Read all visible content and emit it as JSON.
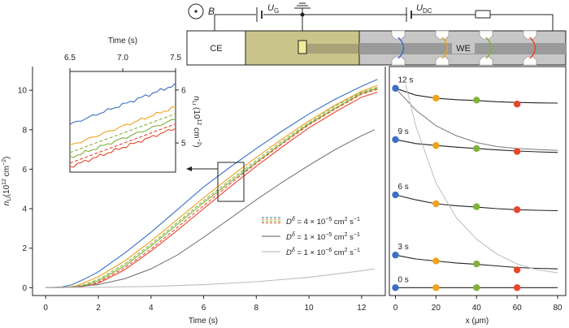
{
  "device": {
    "magnetic_field_label": "B",
    "gate_voltage_label": "U",
    "gate_voltage_sub": "G",
    "dc_voltage_label": "U",
    "dc_voltage_sub": "DC",
    "counter_electrode_label": "CE",
    "working_electrode_label": "WE"
  },
  "colors": {
    "blue": "#3b6fc4",
    "orange": "#f0a21a",
    "green": "#7fb23a",
    "red": "#e8452c",
    "gray_dark": "#7a7a7a",
    "gray_light": "#bdbdbd",
    "black": "#222222",
    "gate_fill": "#c9c48a"
  },
  "chart_data": [
    {
      "id": "main",
      "type": "line",
      "xlabel": "Time (s)",
      "ylabel": "n",
      "ylabel_sub": "Li",
      "ylabel_unit": "(10",
      "ylabel_exp": "12",
      "ylabel_unit2": " cm",
      "ylabel_exp2": "−2",
      "ylabel_close": ")",
      "xlim": [
        -0.5,
        12.9
      ],
      "ylim": [
        -0.4,
        11.2
      ],
      "xticks": [
        "0",
        "2",
        "4",
        "6",
        "8",
        "10",
        "12"
      ],
      "yticks": [
        "0",
        "2",
        "4",
        "6",
        "8",
        "10"
      ],
      "series": [
        {
          "color": "blue",
          "dashed": false,
          "x": [
            0.0,
            0.6,
            1.0,
            1.5,
            2.0,
            3.0,
            4.0,
            5.0,
            6.0,
            7.0,
            8.0,
            9.0,
            10.0,
            11.0,
            12.0,
            12.6
          ],
          "y": [
            0.0,
            0.03,
            0.15,
            0.45,
            0.8,
            1.75,
            2.8,
            3.95,
            5.1,
            6.1,
            7.05,
            7.95,
            8.8,
            9.55,
            10.2,
            10.55
          ]
        },
        {
          "color": "orange",
          "dashed": false,
          "x": [
            0.0,
            0.8,
            1.2,
            2.0,
            3.0,
            4.0,
            5.0,
            6.0,
            7.0,
            8.0,
            9.0,
            10.0,
            11.0,
            12.0,
            12.6
          ],
          "y": [
            0.0,
            0.02,
            0.1,
            0.55,
            1.35,
            2.35,
            3.45,
            4.55,
            5.6,
            6.6,
            7.55,
            8.45,
            9.25,
            9.95,
            10.25
          ]
        },
        {
          "color": "green",
          "dashed": true,
          "x": [
            0.0,
            0.9,
            1.4,
            2.0,
            3.0,
            4.0,
            5.0,
            6.0,
            7.0,
            8.0,
            9.0,
            10.0,
            11.0,
            12.0,
            12.6
          ],
          "y": [
            0.0,
            0.02,
            0.12,
            0.42,
            1.2,
            2.2,
            3.3,
            4.4,
            5.45,
            6.45,
            7.45,
            8.35,
            9.2,
            9.9,
            10.15
          ]
        },
        {
          "color": "green",
          "dashed": false,
          "x": [
            0.0,
            1.0,
            1.5,
            2.0,
            3.0,
            4.0,
            5.0,
            6.0,
            7.0,
            8.0,
            9.0,
            10.0,
            11.0,
            12.0,
            12.6
          ],
          "y": [
            0.0,
            0.02,
            0.12,
            0.35,
            1.1,
            2.1,
            3.2,
            4.3,
            5.35,
            6.35,
            7.35,
            8.3,
            9.1,
            9.85,
            10.1
          ]
        },
        {
          "color": "red",
          "dashed": true,
          "x": [
            0.0,
            1.1,
            1.6,
            2.0,
            3.0,
            4.0,
            5.0,
            6.0,
            7.0,
            8.0,
            9.0,
            10.0,
            11.0,
            12.0,
            12.6
          ],
          "y": [
            0.0,
            0.02,
            0.12,
            0.28,
            1.0,
            1.95,
            3.05,
            4.15,
            5.25,
            6.3,
            7.3,
            8.25,
            9.05,
            9.8,
            10.05
          ]
        },
        {
          "color": "red",
          "dashed": false,
          "x": [
            0.0,
            1.2,
            1.8,
            2.0,
            3.0,
            4.0,
            5.0,
            6.0,
            7.0,
            8.0,
            9.0,
            10.0,
            11.0,
            12.0,
            12.6
          ],
          "y": [
            0.0,
            0.02,
            0.15,
            0.22,
            0.9,
            1.85,
            2.9,
            4.0,
            5.1,
            6.15,
            7.15,
            8.1,
            8.9,
            9.65,
            9.9
          ]
        },
        {
          "color": "gray_dark",
          "dashed": false,
          "x": [
            0.0,
            1.0,
            2.0,
            3.0,
            4.0,
            5.0,
            6.0,
            7.0,
            8.0,
            9.0,
            10.0,
            11.0,
            12.0,
            12.5
          ],
          "y": [
            0.0,
            0.03,
            0.15,
            0.45,
            0.95,
            1.65,
            2.55,
            3.5,
            4.45,
            5.35,
            6.2,
            7.0,
            7.7,
            8.0
          ]
        },
        {
          "color": "gray_light",
          "dashed": false,
          "x": [
            0.0,
            2.0,
            4.0,
            6.0,
            8.0,
            10.0,
            12.0,
            12.5
          ],
          "y": [
            0.0,
            0.02,
            0.06,
            0.15,
            0.3,
            0.52,
            0.85,
            0.95
          ]
        }
      ],
      "legend": [
        {
          "color": "multi",
          "dashed": true,
          "label_pre": "D",
          "label_sup": "δ",
          "label_post": " = 4 × 10",
          "label_exp": "−5",
          "label_unit": " cm",
          "label_exp2": "2",
          "label_unit2": " s",
          "label_exp3": "−1"
        },
        {
          "color": "gray_dark",
          "dashed": false,
          "label_pre": "D",
          "label_sup": "δ",
          "label_post": " = 1 × 10",
          "label_exp": "−5",
          "label_unit": " cm",
          "label_exp2": "2",
          "label_unit2": " s",
          "label_exp3": "−1"
        },
        {
          "color": "gray_light",
          "dashed": false,
          "label_pre": "D",
          "label_sup": "δ",
          "label_post": " = 1 × 10",
          "label_exp": "−6",
          "label_unit": " cm",
          "label_exp2": "2",
          "label_unit2": " s",
          "label_exp3": "−1"
        }
      ]
    },
    {
      "id": "inset",
      "type": "line",
      "xlabel": "Time (s)",
      "ylabel": "n",
      "ylabel_sub": "Li",
      "ylabel_unit": " (10",
      "ylabel_exp": "12",
      "ylabel_unit2": " cm",
      "ylabel_exp2": "−2",
      "ylabel_close": ")",
      "xlim": [
        6.5,
        7.5
      ],
      "ylim": [
        4.45,
        6.35
      ],
      "xticks": [
        "6.5",
        "7.0",
        "7.5"
      ],
      "yticks": [
        "5",
        "6"
      ],
      "series": [
        {
          "color": "blue",
          "dashed": false,
          "x": [
            6.5,
            7.5
          ],
          "y": [
            5.35,
            6.1
          ]
        },
        {
          "color": "orange",
          "dashed": false,
          "x": [
            6.5,
            7.5
          ],
          "y": [
            4.95,
            5.68
          ]
        },
        {
          "color": "green",
          "dashed": true,
          "x": [
            6.5,
            7.5
          ],
          "y": [
            4.82,
            5.55
          ]
        },
        {
          "color": "green",
          "dashed": false,
          "x": [
            6.5,
            7.5
          ],
          "y": [
            4.72,
            5.45
          ]
        },
        {
          "color": "red",
          "dashed": true,
          "x": [
            6.5,
            7.5
          ],
          "y": [
            4.62,
            5.36
          ]
        },
        {
          "color": "red",
          "dashed": false,
          "x": [
            6.5,
            7.5
          ],
          "y": [
            4.55,
            5.28
          ]
        }
      ]
    },
    {
      "id": "profile",
      "type": "scatter",
      "xlabel": "x (μm)",
      "xlim": [
        -3,
        84
      ],
      "ylim": [
        -0.4,
        11.2
      ],
      "xticks": [
        "0",
        "20",
        "40",
        "60",
        "80"
      ],
      "time_labels": [
        "12 s",
        "9 s",
        "6 s",
        "3 s",
        "0 s"
      ],
      "points_x": [
        0,
        20,
        40,
        60
      ],
      "point_colors": [
        "blue",
        "orange",
        "green",
        "red"
      ],
      "profiles": [
        {
          "t": "12 s",
          "y": [
            10.1,
            9.6,
            9.5,
            9.3
          ]
        },
        {
          "t": "9 s",
          "y": [
            7.5,
            7.2,
            7.05,
            6.9
          ]
        },
        {
          "t": "6 s",
          "y": [
            4.7,
            4.25,
            4.1,
            3.95
          ]
        },
        {
          "t": "3 s",
          "y": [
            1.65,
            1.35,
            1.2,
            0.9
          ]
        },
        {
          "t": "0 s",
          "y": [
            0.0,
            0.0,
            0.0,
            0.0
          ]
        }
      ],
      "fit_curves": [
        {
          "color": "black",
          "x": [
            0,
            10,
            20,
            30,
            40,
            50,
            60,
            70,
            80
          ],
          "y": [
            10.1,
            9.75,
            9.6,
            9.52,
            9.48,
            9.42,
            9.38,
            9.36,
            9.35
          ]
        },
        {
          "color": "black",
          "x": [
            0,
            10,
            20,
            30,
            40,
            50,
            60,
            70,
            80
          ],
          "y": [
            7.5,
            7.3,
            7.2,
            7.12,
            7.05,
            6.98,
            6.92,
            6.88,
            6.85
          ]
        },
        {
          "color": "black",
          "x": [
            0,
            10,
            20,
            30,
            40,
            50,
            60,
            70,
            80
          ],
          "y": [
            4.7,
            4.45,
            4.25,
            4.15,
            4.08,
            4.0,
            3.95,
            3.92,
            3.9
          ]
        },
        {
          "color": "black",
          "x": [
            0,
            10,
            20,
            30,
            40,
            50,
            60,
            70,
            80
          ],
          "y": [
            1.65,
            1.45,
            1.35,
            1.25,
            1.18,
            1.1,
            1.02,
            0.98,
            0.95
          ]
        },
        {
          "color": "black",
          "x": [
            0,
            20,
            40,
            60,
            80
          ],
          "y": [
            0,
            0,
            0,
            0,
            0
          ]
        },
        {
          "color": "gray_dark",
          "x": [
            0,
            10,
            20,
            30,
            40,
            50,
            60,
            70,
            80
          ],
          "y": [
            10.1,
            9.0,
            8.2,
            7.7,
            7.35,
            7.15,
            7.05,
            7.0,
            6.95
          ]
        },
        {
          "color": "gray_light",
          "x": [
            5,
            10,
            20,
            30,
            40,
            50,
            60,
            70,
            80
          ],
          "y": [
            10.3,
            8.2,
            5.3,
            3.55,
            2.45,
            1.7,
            1.2,
            0.9,
            0.75
          ]
        }
      ]
    }
  ]
}
